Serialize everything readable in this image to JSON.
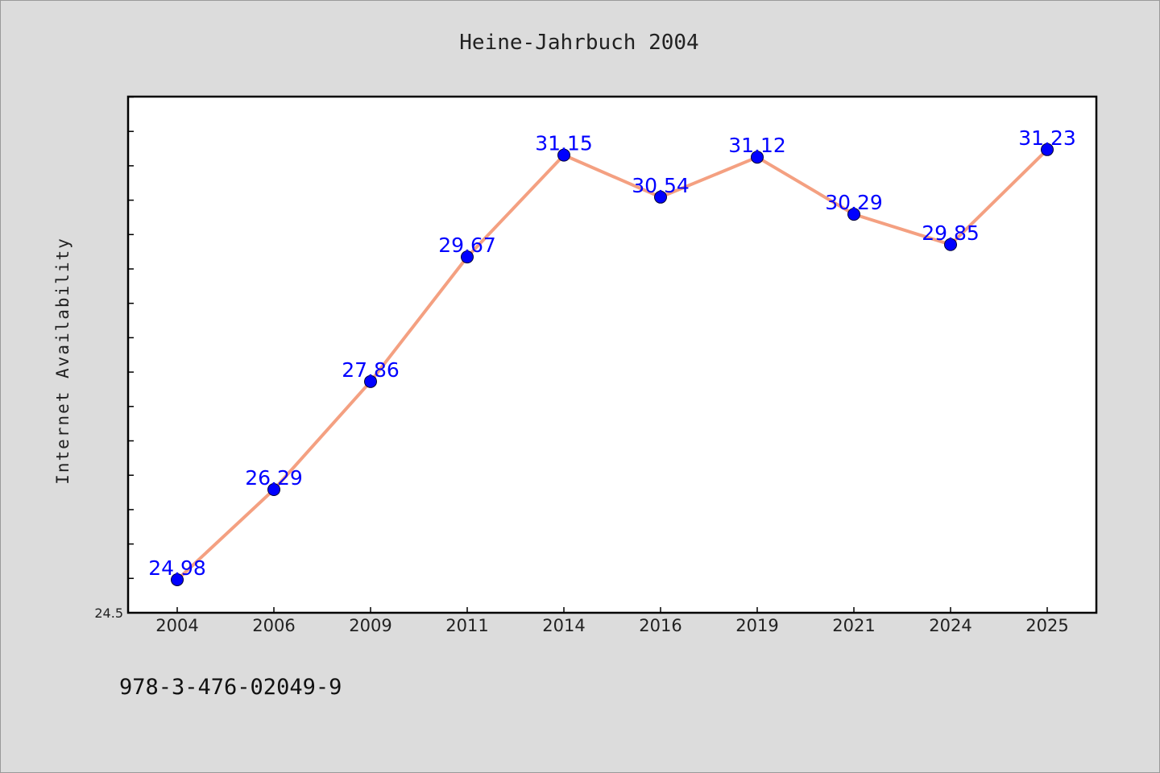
{
  "chart_data": {
    "type": "line",
    "title": "Heine-Jahrbuch 2004",
    "ylabel": "Internet Availability",
    "xlabel": "",
    "categories": [
      "2004",
      "2006",
      "2009",
      "2011",
      "2014",
      "2016",
      "2019",
      "2021",
      "2024",
      "2025"
    ],
    "values": [
      24.98,
      26.29,
      27.86,
      29.67,
      31.15,
      30.54,
      31.12,
      30.29,
      29.85,
      31.23
    ],
    "data_labels": [
      "24.98",
      "26.29",
      "27.86",
      "29.67",
      "31.15",
      "30.54",
      "31.12",
      "30.29",
      "29.85",
      "31.23"
    ],
    "y_tick_labels": [
      "24.5"
    ],
    "ylim": [
      24.5,
      32.0
    ],
    "grid": false,
    "legend": "none",
    "colors": {
      "line": "#f4a081",
      "marker": "#0000ff",
      "data_label": "#0000ff",
      "plot_background": "#ffffff",
      "page_background": "#dcdcdc"
    }
  },
  "footnote": "978-3-476-02049-9"
}
